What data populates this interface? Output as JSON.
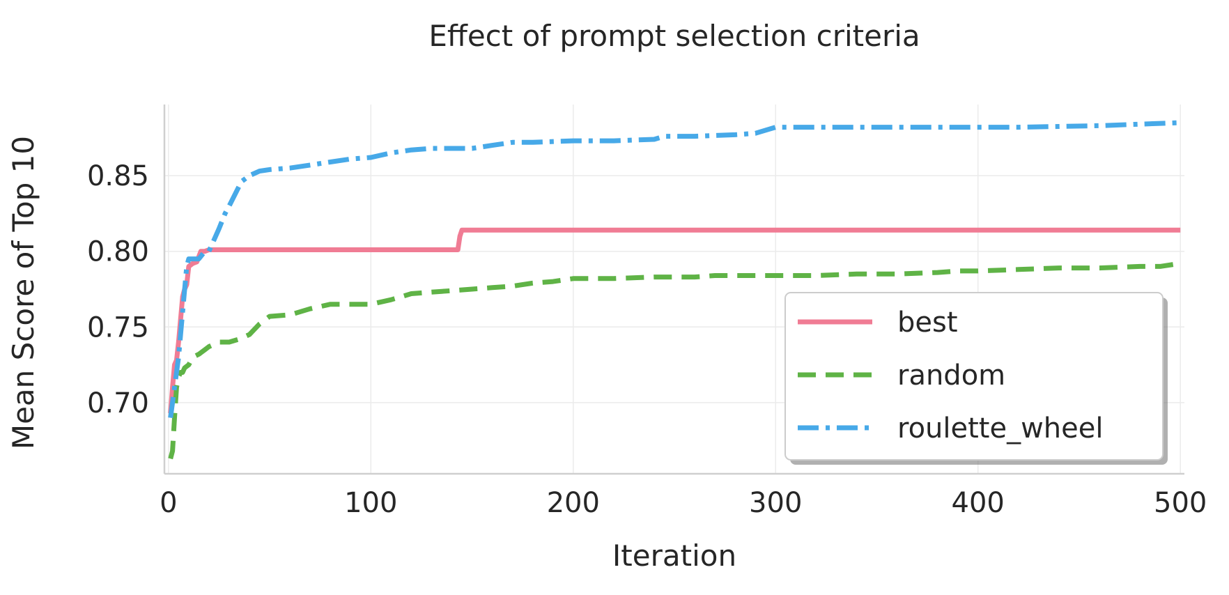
{
  "chart_data": {
    "type": "line",
    "title": "Effect of prompt selection criteria",
    "xlabel": "Iteration",
    "ylabel": "Mean Score of Top 10",
    "xlim": [
      -2,
      502
    ],
    "ylim": [
      0.653,
      0.897
    ],
    "xticks": [
      0,
      100,
      200,
      300,
      400,
      500
    ],
    "yticks": [
      0.7,
      0.75,
      0.8,
      0.85
    ],
    "ytick_labels": [
      "0.70",
      "0.75",
      "0.80",
      "0.85"
    ],
    "grid": true,
    "legend_position": "lower-right",
    "series": [
      {
        "name": "best",
        "color": "#f07c94",
        "style": "solid",
        "x": [
          1,
          2,
          3,
          4,
          5,
          6,
          7,
          8,
          9,
          10,
          12,
          14,
          16,
          18,
          20,
          22,
          143,
          144,
          145,
          500
        ],
        "y": [
          0.693,
          0.71,
          0.725,
          0.728,
          0.74,
          0.755,
          0.77,
          0.775,
          0.778,
          0.79,
          0.792,
          0.793,
          0.8,
          0.8,
          0.801,
          0.801,
          0.801,
          0.81,
          0.814,
          0.814
        ]
      },
      {
        "name": "random",
        "color": "#5fb346",
        "style": "dashed",
        "x": [
          1,
          2,
          3,
          4,
          5,
          6,
          7,
          8,
          10,
          12,
          15,
          18,
          20,
          25,
          30,
          35,
          40,
          45,
          50,
          60,
          70,
          80,
          90,
          100,
          110,
          115,
          120,
          130,
          140,
          150,
          160,
          170,
          180,
          190,
          200,
          220,
          240,
          260,
          270,
          280,
          300,
          320,
          340,
          360,
          380,
          390,
          400,
          420,
          440,
          460,
          480,
          490,
          500
        ],
        "y": [
          0.663,
          0.668,
          0.69,
          0.71,
          0.717,
          0.72,
          0.72,
          0.723,
          0.725,
          0.73,
          0.732,
          0.735,
          0.737,
          0.74,
          0.74,
          0.742,
          0.745,
          0.752,
          0.757,
          0.758,
          0.762,
          0.765,
          0.765,
          0.765,
          0.768,
          0.77,
          0.772,
          0.773,
          0.774,
          0.775,
          0.776,
          0.777,
          0.779,
          0.78,
          0.782,
          0.782,
          0.783,
          0.783,
          0.784,
          0.784,
          0.784,
          0.784,
          0.785,
          0.785,
          0.786,
          0.787,
          0.787,
          0.788,
          0.789,
          0.789,
          0.79,
          0.79,
          0.792
        ]
      },
      {
        "name": "roulette_wheel",
        "color": "#47a9e8",
        "style": "dashdot",
        "x": [
          1,
          2,
          3,
          5,
          7,
          9,
          10,
          12,
          15,
          18,
          20,
          25,
          28,
          30,
          33,
          36,
          40,
          45,
          50,
          60,
          70,
          80,
          90,
          100,
          110,
          120,
          130,
          140,
          150,
          160,
          170,
          180,
          200,
          220,
          240,
          245,
          260,
          280,
          290,
          300,
          340,
          380,
          420,
          460,
          480,
          500
        ],
        "y": [
          0.69,
          0.7,
          0.71,
          0.73,
          0.76,
          0.79,
          0.795,
          0.795,
          0.795,
          0.8,
          0.8,
          0.815,
          0.825,
          0.83,
          0.838,
          0.846,
          0.85,
          0.853,
          0.854,
          0.855,
          0.857,
          0.859,
          0.861,
          0.862,
          0.865,
          0.867,
          0.868,
          0.868,
          0.868,
          0.87,
          0.872,
          0.872,
          0.873,
          0.873,
          0.874,
          0.876,
          0.876,
          0.877,
          0.878,
          0.882,
          0.882,
          0.882,
          0.882,
          0.883,
          0.884,
          0.885
        ]
      }
    ]
  }
}
